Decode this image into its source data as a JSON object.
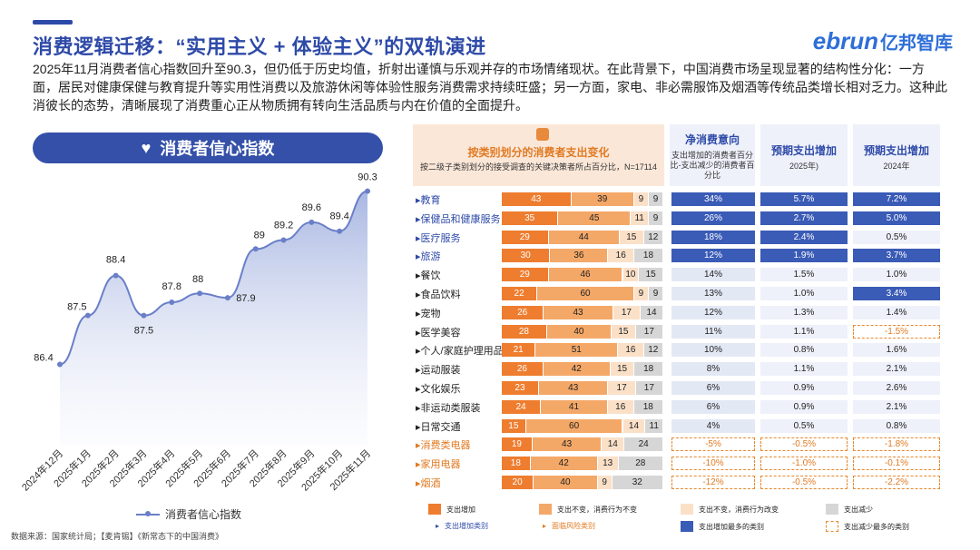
{
  "header": {
    "title": "消费逻辑迁移：“实用主义 + 体验主义”的双轨演进",
    "logo_main": "ebrun",
    "logo_sub": "亿邦智库",
    "intro": "2025年11月消费者信心指数回升至90.3，但仍低于历史均值，折射出谨慎与乐观并存的市场情绪现状。在此背景下，中国消费市场呈现显著的结构性分化：一方面，居民对健康保健与教育提升等实用性消费以及旅游休闲等体验性服务消费需求持续旺盛；另一方面，家电、非必需服饰及烟酒等传统品类增长相对乏力。这种此消彼长的态势，清晰展现了消费重心正从物质拥有转向生活品质与内在价值的全面提升。"
  },
  "left_panel": {
    "heading": "消费者信心指数",
    "legend": "消费者信心指数"
  },
  "chart_data": [
    {
      "type": "area",
      "title": "消费者信心指数",
      "categories": [
        "2024年12月",
        "2025年1月",
        "2025年2月",
        "2025年3月",
        "2025年4月",
        "2025年5月",
        "2025年6月",
        "2025年7月",
        "2025年8月",
        "2025年9月",
        "2025年10月",
        "2025年11月"
      ],
      "series": [
        {
          "name": "消费者信心指数",
          "values": [
            86.4,
            87.5,
            88.4,
            87.5,
            87.8,
            88,
            87.9,
            89,
            89.2,
            89.6,
            89.4,
            90.3
          ]
        }
      ],
      "ylim": [
        85.0,
        90.6
      ]
    },
    {
      "type": "table",
      "title": "按类别划分的消费者支出变化",
      "subtitle": "按二级子类别划分的接受调查的关键决策者所占百分比，N=17114",
      "columns": [
        "净消费意向",
        "预期支出增加",
        "预期支出增加"
      ],
      "column_notes": [
        "支出增加的消费者百分比-支出减少的消费者百分比",
        "2025年)",
        "2024年"
      ],
      "rows": [
        {
          "label": "教育",
          "style": "blue",
          "bars": [
            43,
            39,
            9,
            9
          ],
          "net": "34%",
          "y2025": "5.7%",
          "y2024": "7.2%",
          "h": [
            "blue",
            "blue",
            "blue",
            "blue"
          ]
        },
        {
          "label": "保健品和健康服务",
          "style": "blue",
          "bars": [
            35,
            45,
            11,
            9
          ],
          "net": "26%",
          "y2025": "2.7%",
          "y2024": "5.0%",
          "h": [
            "blue",
            "blue",
            "blue",
            "blue"
          ]
        },
        {
          "label": "医疗服务",
          "style": "blue",
          "bars": [
            29,
            44,
            15,
            12
          ],
          "net": "18%",
          "y2025": "2.4%",
          "y2024": "0.5%",
          "h": [
            "blue",
            "blue",
            "blue",
            "none"
          ]
        },
        {
          "label": "旅游",
          "style": "blue",
          "bars": [
            30,
            36,
            16,
            18
          ],
          "net": "12%",
          "y2025": "1.9%",
          "y2024": "3.7%",
          "h": [
            "blue",
            "blue",
            "blue",
            "blue"
          ]
        },
        {
          "label": "餐饮",
          "style": "",
          "bars": [
            29,
            46,
            10,
            15
          ],
          "net": "14%",
          "y2025": "1.5%",
          "y2024": "1.0%",
          "h": [
            "none",
            "none",
            "none",
            "none"
          ]
        },
        {
          "label": "食品饮料",
          "style": "",
          "bars": [
            22,
            60,
            9,
            9
          ],
          "net": "13%",
          "y2025": "1.0%",
          "y2024": "3.4%",
          "h": [
            "none",
            "none",
            "none",
            "blue"
          ]
        },
        {
          "label": "宠物",
          "style": "",
          "bars": [
            26,
            43,
            17,
            14
          ],
          "net": "12%",
          "y2025": "1.3%",
          "y2024": "1.4%",
          "h": [
            "none",
            "none",
            "none",
            "none"
          ]
        },
        {
          "label": "医学美容",
          "style": "",
          "bars": [
            28,
            40,
            15,
            17
          ],
          "net": "11%",
          "y2025": "1.1%",
          "y2024": "-1.5%",
          "h": [
            "none",
            "none",
            "none",
            "dash"
          ]
        },
        {
          "label": "个人/家庭护理用品",
          "style": "",
          "bars": [
            21,
            51,
            16,
            12
          ],
          "net": "10%",
          "y2025": "0.8%",
          "y2024": "1.6%",
          "h": [
            "none",
            "none",
            "none",
            "none"
          ]
        },
        {
          "label": "运动服装",
          "style": "",
          "bars": [
            26,
            42,
            15,
            18
          ],
          "net": "8%",
          "y2025": "1.1%",
          "y2024": "2.1%",
          "h": [
            "none",
            "none",
            "none",
            "none"
          ]
        },
        {
          "label": "文化娱乐",
          "style": "",
          "bars": [
            23,
            43,
            17,
            17
          ],
          "net": "6%",
          "y2025": "0.9%",
          "y2024": "2.6%",
          "h": [
            "none",
            "none",
            "none",
            "none"
          ]
        },
        {
          "label": "非运动类服装",
          "style": "",
          "bars": [
            24,
            41,
            16,
            18
          ],
          "net": "6%",
          "y2025": "0.9%",
          "y2024": "2.1%",
          "h": [
            "none",
            "none",
            "none",
            "none"
          ]
        },
        {
          "label": "日常交通",
          "style": "",
          "bars": [
            15,
            60,
            14,
            11
          ],
          "net": "4%",
          "y2025": "0.5%",
          "y2024": "0.8%",
          "h": [
            "none",
            "none",
            "none",
            "none"
          ]
        },
        {
          "label": "消费类电器",
          "style": "orange",
          "bars": [
            19,
            43,
            14,
            24
          ],
          "net": "-5%",
          "y2025": "-0.5%",
          "y2024": "-1.8%",
          "h": [
            "dash",
            "dash",
            "dash",
            "dash"
          ]
        },
        {
          "label": "家用电器",
          "style": "orange",
          "bars": [
            18,
            42,
            13,
            28
          ],
          "net": "-10%",
          "y2025": "-1.0%",
          "y2024": "-0.1%",
          "h": [
            "dash",
            "dash",
            "dash",
            "dash"
          ]
        },
        {
          "label": "烟酒",
          "style": "orange",
          "bars": [
            20,
            40,
            9,
            32
          ],
          "net": "-12%",
          "y2025": "-0.5%",
          "y2024": "-2.2%",
          "h": [
            "dash",
            "dash",
            "dash",
            "dash"
          ]
        }
      ],
      "legend": [
        "支出增加",
        "支出不变，消费行为不变",
        "支出不变，消费行为改变",
        "支出减少",
        "支出增加类别",
        "面临风险类别",
        "支出增加最多的类别",
        "支出减少最多的类别"
      ]
    }
  ],
  "colors": {
    "primary": "#2e4aa8",
    "bar1": "#ee7d2f",
    "bar2": "#f4a868",
    "bar3": "#fbe0c8",
    "bar4": "#d6d6d6",
    "highlight_blue": "#3a5bb6",
    "highlight_orange": "#e8892e",
    "net_bg": "#e3e8f5"
  },
  "footer": {
    "source": "数据来源：国家统计局；【麦肯锡】《新常态下的中国消费》"
  }
}
